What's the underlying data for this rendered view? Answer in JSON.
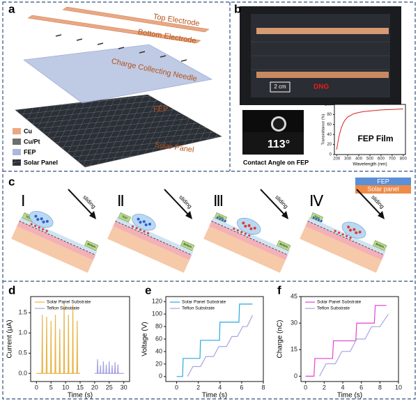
{
  "figure": {
    "panel_labels": [
      "a",
      "b",
      "c",
      "d",
      "e",
      "f"
    ]
  },
  "panel_a": {
    "layers": [
      "Top Electrode",
      "Bottom Electrode",
      "Charge Collecting Needle",
      "FEP",
      "Solar Panel"
    ],
    "legend": [
      "Cu",
      "Cu/Pt",
      "FEP",
      "Solar Panel"
    ]
  },
  "panel_b": {
    "scale_bar": "2 cm",
    "device": "DNG",
    "angle": "113°",
    "angle_caption": "Contact Angle on FEP"
  },
  "panel_c": {
    "stages": [
      {
        "numeral": "Ⅰ",
        "arrow": "sliding",
        "top": "TOP",
        "bottom": "Bottom"
      },
      {
        "numeral": "Ⅱ",
        "arrow": "sliding",
        "top": "TOP",
        "bottom": "Bottom"
      },
      {
        "numeral": "Ⅲ",
        "arrow": "sliding",
        "top": "TOP",
        "bottom": "Bottom"
      },
      {
        "numeral": "Ⅳ",
        "arrow": "sliding",
        "top": "TOP",
        "bottom": "Bottom"
      }
    ],
    "legend": [
      "FEP",
      "Solar panel"
    ]
  },
  "chart_data": [
    {
      "type": "line",
      "x_label": "Wavelength (nm)",
      "y_label": "Transmittance (%)",
      "annotation": "FEP Film",
      "xlim": [
        180,
        820
      ],
      "ylim": [
        0,
        100
      ],
      "xticks": [
        200,
        300,
        400,
        500,
        600,
        700,
        800
      ],
      "yticks": [
        0,
        20,
        40,
        60,
        80,
        100
      ],
      "series": [
        {
          "color": "#d62020",
          "x": [
            200,
            220,
            240,
            260,
            280,
            300,
            350,
            400,
            450,
            500,
            600,
            700,
            800
          ],
          "values": [
            10,
            35,
            52,
            63,
            70,
            75,
            81,
            84,
            86,
            87,
            89,
            90,
            91
          ]
        }
      ]
    },
    {
      "type": "line",
      "x_label": "Time (s)",
      "y_label": "Current (μA)",
      "xlim": [
        -2,
        32
      ],
      "ylim": [
        -0.2,
        1.9
      ],
      "xticks": [
        0,
        5,
        10,
        15,
        20,
        25,
        30
      ],
      "yticks": [
        {
          "value": 0,
          "label": "0.0"
        },
        0.5,
        {
          "value": 1,
          "label": "1.0"
        },
        1.5
      ],
      "series": [
        {
          "name": "Solar Panel Substrate",
          "color": "#e8b54a",
          "x": [
            0,
            1.85,
            2,
            2.15,
            3.35,
            3.5,
            3.65,
            4.85,
            5,
            5.15,
            6.35,
            6.5,
            6.65,
            7.85,
            8,
            8.15,
            9.35,
            9.5,
            9.65,
            10.85,
            11,
            11.15,
            12.35,
            12.5,
            12.65,
            13.85,
            14,
            14.15,
            15
          ],
          "values": [
            0,
            0,
            1.45,
            0,
            0,
            1.4,
            0,
            0,
            1.3,
            0,
            0,
            1.45,
            0,
            0,
            1.1,
            0,
            0,
            1.75,
            0,
            0,
            1.45,
            0,
            0,
            1.7,
            0,
            0,
            1.3,
            0,
            0
          ]
        },
        {
          "name": "Teflon Substrate",
          "color": "#a7a3e3",
          "x": [
            20,
            20.85,
            21,
            21.15,
            21.85,
            22,
            22.15,
            22.85,
            23,
            23.15,
            23.85,
            24,
            24.15,
            24.85,
            25,
            25.15,
            25.85,
            26,
            26.15,
            26.85,
            27,
            27.15,
            27.85,
            28,
            28.15,
            30
          ],
          "values": [
            0,
            0,
            0.35,
            0,
            0,
            0.2,
            0,
            0,
            0.3,
            0,
            0,
            0.22,
            0,
            0,
            0.3,
            0,
            0,
            0.2,
            0,
            0,
            0.28,
            0,
            0,
            0.22,
            0,
            0
          ]
        }
      ]
    },
    {
      "type": "line",
      "x_label": "Time (s)",
      "y_label": "Voltage (V)",
      "xlim": [
        -1,
        8
      ],
      "ylim": [
        -8,
        128
      ],
      "xticks": [
        0,
        2,
        4,
        6,
        8
      ],
      "yticks": [
        0,
        20,
        40,
        60,
        80,
        100,
        120
      ],
      "series": [
        {
          "name": "Solar Panel Substrate",
          "color": "#2aa8e0",
          "x": [
            0,
            0.55,
            0.6,
            2.15,
            2.2,
            3.95,
            4,
            5.75,
            5.8,
            7
          ],
          "values": [
            0,
            0,
            29,
            29,
            58,
            58,
            87,
            87,
            116,
            116
          ]
        },
        {
          "name": "Teflon Substrate",
          "color": "#a7a3e3",
          "x": [
            1,
            1.5,
            2.2,
            2.7,
            3.4,
            3.9,
            4.6,
            5.1,
            5.6,
            6.1,
            6.5,
            7
          ],
          "values": [
            0,
            16,
            16,
            32,
            32,
            48,
            48,
            64,
            64,
            80,
            80,
            98
          ]
        }
      ]
    },
    {
      "type": "line",
      "x_label": "Time (s)",
      "y_label": "Charge (nC)",
      "xlim": [
        -0.5,
        10
      ],
      "ylim": [
        -3,
        45
      ],
      "xticks": [
        0,
        2,
        4,
        6,
        8,
        10
      ],
      "yticks": [
        0,
        15,
        30,
        45
      ],
      "series": [
        {
          "name": "Solar Panel Substrate",
          "color": "#e63fd0",
          "x": [
            0,
            0.9,
            1,
            2.9,
            3,
            5.4,
            5.5,
            7.4,
            7.5,
            8.7
          ],
          "values": [
            0,
            0,
            10,
            10,
            20,
            20,
            30,
            30,
            40,
            40
          ]
        },
        {
          "name": "Teflon Substrate",
          "color": "#a7a3e3",
          "x": [
            1.5,
            2.2,
            3.2,
            3.9,
            4.8,
            5.5,
            6.4,
            7.1,
            8,
            8.9
          ],
          "values": [
            0,
            7,
            7,
            14,
            14,
            21,
            21,
            28,
            28,
            35
          ]
        }
      ]
    }
  ]
}
